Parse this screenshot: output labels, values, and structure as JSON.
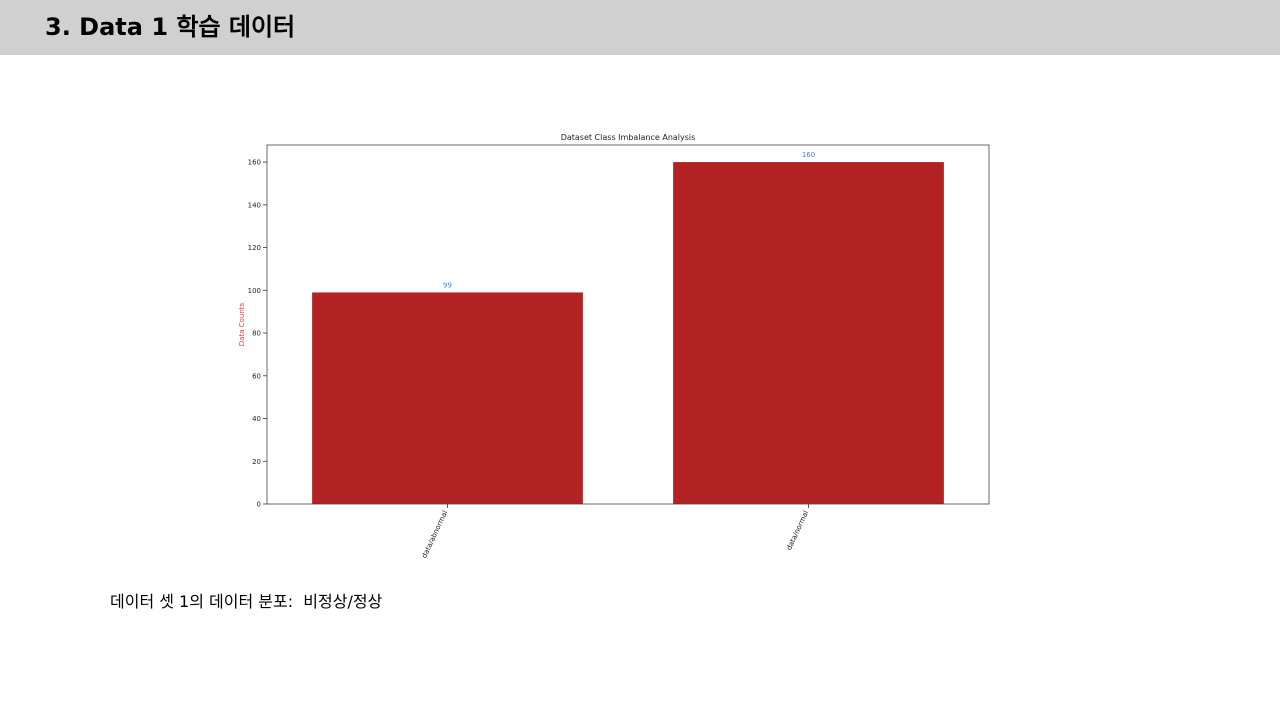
{
  "slide": {
    "title": "3. Data 1 학습 데이터",
    "caption": "데이터 셋 1의 데이터 분포:  비정상/정상"
  },
  "colors": {
    "header_bg": "#d0d0d0",
    "bar": "#b22222",
    "data_label": "#4a7fd6",
    "ylabel": "#e84040"
  },
  "chart_data": {
    "type": "bar",
    "title": "Dataset Class Imbalance Analysis",
    "xlabel": "",
    "ylabel": "Data Counts",
    "categories": [
      "data/abnormal",
      "data/normal"
    ],
    "values": [
      99,
      160
    ],
    "data_labels": [
      "99",
      "160"
    ],
    "ylim": [
      0,
      168
    ],
    "yticks": [
      0,
      20,
      40,
      60,
      80,
      100,
      120,
      140,
      160
    ],
    "grid": false
  }
}
